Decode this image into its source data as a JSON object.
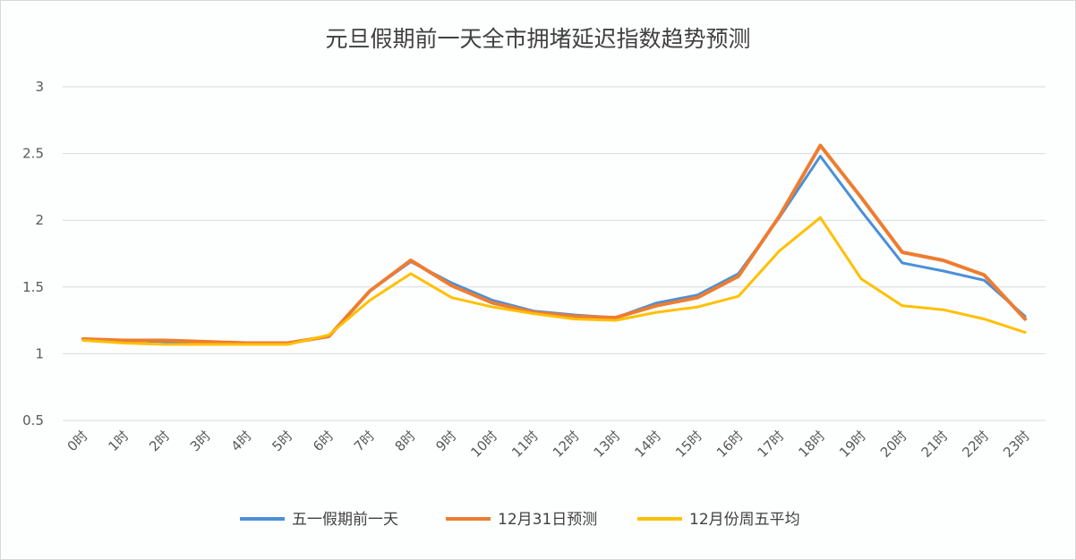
{
  "chart_data": {
    "type": "line",
    "title": "元旦假期前一天全市拥堵延迟指数趋势预测",
    "xlabel": "",
    "ylabel": "",
    "ylim": [
      0.5,
      3
    ],
    "yticks": [
      "0.5",
      "1",
      "1.5",
      "2",
      "2.5",
      "3"
    ],
    "grid": true,
    "legend_position": "bottom",
    "categories": [
      "0时",
      "1时",
      "2时",
      "3时",
      "4时",
      "5时",
      "6时",
      "7时",
      "8时",
      "9时",
      "10时",
      "11时",
      "12时",
      "13时",
      "14时",
      "15时",
      "16时",
      "17时",
      "18时",
      "19时",
      "20时",
      "21时",
      "22时",
      "23时"
    ],
    "series": [
      {
        "name": "五一假期前一天",
        "color": "#4a90d9",
        "values": [
          1.11,
          1.1,
          1.09,
          1.09,
          1.08,
          1.08,
          1.13,
          1.47,
          1.69,
          1.53,
          1.4,
          1.32,
          1.29,
          1.27,
          1.38,
          1.44,
          1.6,
          2.02,
          2.48,
          2.07,
          1.68,
          1.62,
          1.55,
          1.28
        ]
      },
      {
        "name": "12月31日预测",
        "color": "#ed7d31",
        "values": [
          1.11,
          1.1,
          1.1,
          1.09,
          1.08,
          1.08,
          1.13,
          1.47,
          1.7,
          1.51,
          1.38,
          1.31,
          1.28,
          1.27,
          1.36,
          1.42,
          1.58,
          2.03,
          2.56,
          2.17,
          1.76,
          1.7,
          1.59,
          1.26
        ]
      },
      {
        "name": "12月份周五平均",
        "color": "#ffc000",
        "values": [
          1.1,
          1.08,
          1.07,
          1.07,
          1.07,
          1.07,
          1.14,
          1.4,
          1.6,
          1.42,
          1.35,
          1.3,
          1.26,
          1.25,
          1.31,
          1.35,
          1.43,
          1.77,
          2.02,
          1.56,
          1.36,
          1.33,
          1.26,
          1.16
        ]
      }
    ]
  }
}
